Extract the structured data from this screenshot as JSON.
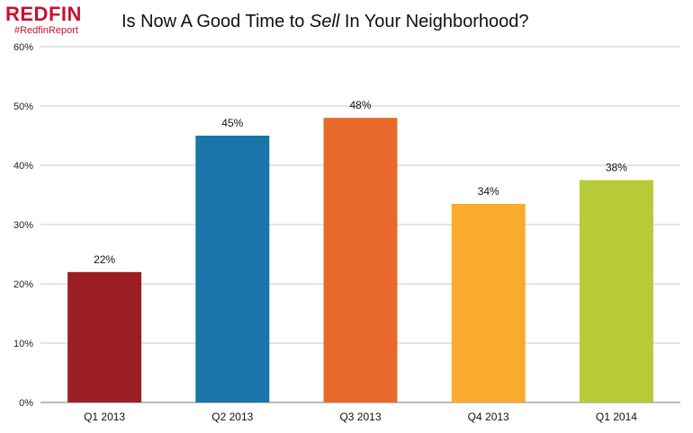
{
  "brand": {
    "logo_text": "REDFIN",
    "hashtag": "#RedfinReport",
    "color": "#c8102e"
  },
  "title": {
    "before": "Is Now A Good Time to ",
    "emphasis": "Sell",
    "after": " In Your Neighborhood?"
  },
  "chart_data": {
    "type": "bar",
    "title": "Is Now A Good Time to Sell In Your Neighborhood?",
    "xlabel": "",
    "ylabel": "",
    "ylim": [
      0,
      60
    ],
    "y_ticks": [
      0,
      10,
      20,
      30,
      40,
      50,
      60
    ],
    "y_tick_labels": [
      "0%",
      "10%",
      "20%",
      "30%",
      "40%",
      "50%",
      "60%"
    ],
    "grid": true,
    "categories": [
      "Q1 2013",
      "Q2 2013",
      "Q3 2013",
      "Q4 2013",
      "Q1 2014"
    ],
    "values": [
      22,
      45,
      48,
      33.5,
      37.5
    ],
    "data_labels": [
      "22%",
      "45%",
      "48%",
      "34%",
      "38%"
    ],
    "colors": [
      "#9b1f23",
      "#1a75a8",
      "#e8692a",
      "#f9ab2e",
      "#b6cb37"
    ]
  }
}
